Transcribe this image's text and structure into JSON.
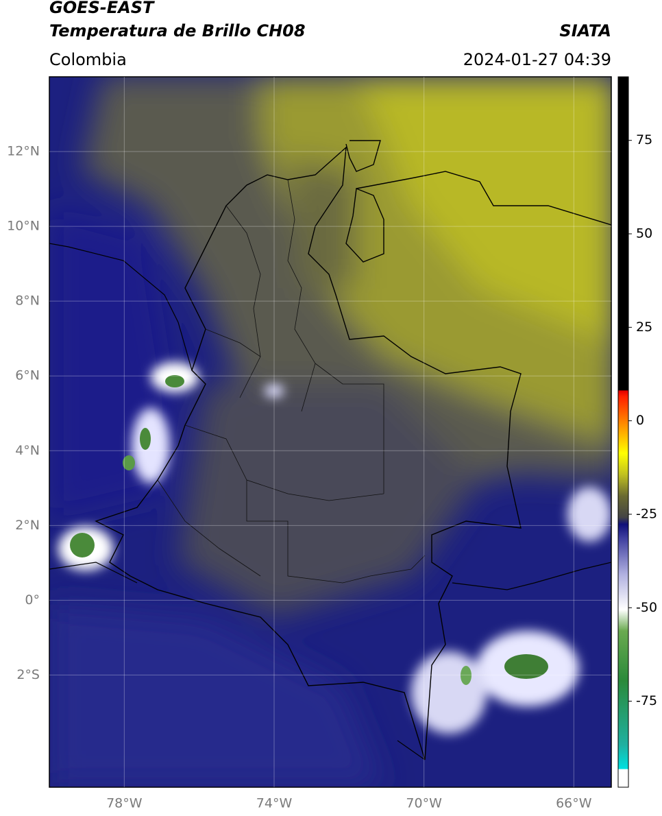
{
  "header": {
    "title": "GOES-EAST",
    "subtitle": "Temperatura de Brillo CH08",
    "source": "SIATA",
    "region": "Colombia",
    "datetime": "2024-01-27 04:39"
  },
  "map": {
    "lonlim": [
      -80,
      -65
    ],
    "latlim": [
      -5,
      14
    ],
    "lat_ticks": [
      {
        "value": 12,
        "label": "12°N"
      },
      {
        "value": 10,
        "label": "10°N"
      },
      {
        "value": 8,
        "label": "8°N"
      },
      {
        "value": 6,
        "label": "6°N"
      },
      {
        "value": 4,
        "label": "4°N"
      },
      {
        "value": 2,
        "label": "2°N"
      },
      {
        "value": 0,
        "label": "0°"
      },
      {
        "value": -2,
        "label": "2°S"
      }
    ],
    "lon_ticks": [
      {
        "value": -78,
        "label": "78°W"
      },
      {
        "value": -74,
        "label": "74°W"
      },
      {
        "value": -70,
        "label": "70°W"
      },
      {
        "value": -66,
        "label": "66°W"
      }
    ]
  },
  "colorbar": {
    "lim": [
      -98,
      92
    ],
    "ticks": [
      75,
      50,
      25,
      0,
      -25,
      -50,
      -75
    ]
  }
}
